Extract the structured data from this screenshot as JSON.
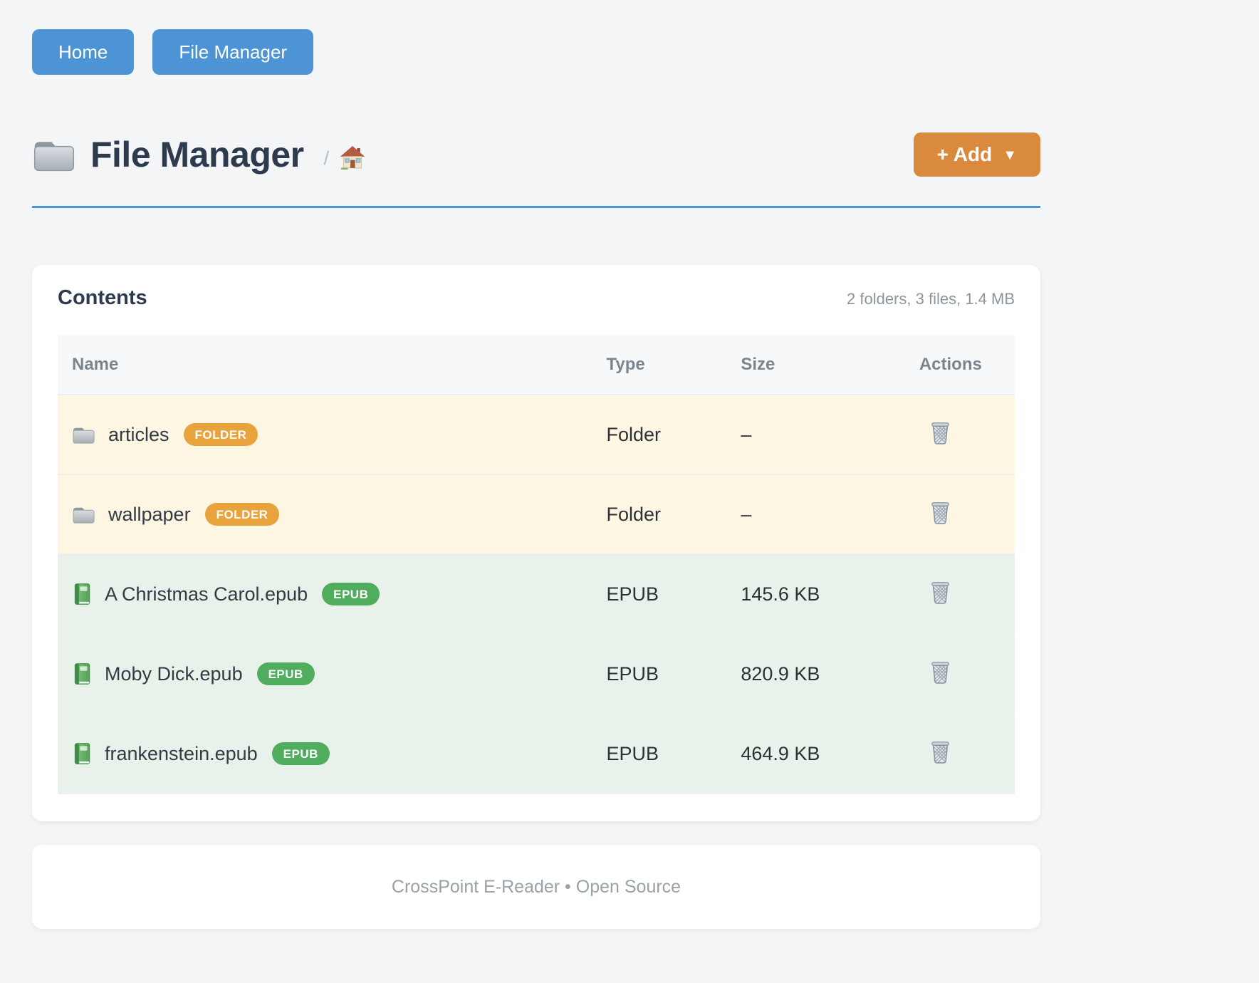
{
  "nav": {
    "buttons": [
      {
        "label": "Home"
      },
      {
        "label": "File Manager"
      }
    ]
  },
  "header": {
    "title": "File Manager",
    "breadcrumb_separator": "/",
    "add_button_label": "+ Add",
    "add_button_caret": "▼"
  },
  "contents_card": {
    "title": "Contents",
    "summary": "2 folders, 3 files, 1.4 MB",
    "table": {
      "columns": [
        "Name",
        "Type",
        "Size",
        "Actions"
      ],
      "rows": [
        {
          "name": "articles",
          "badge": "FOLDER",
          "kind": "folder",
          "type": "Folder",
          "size": "–"
        },
        {
          "name": "wallpaper",
          "badge": "FOLDER",
          "kind": "folder",
          "type": "Folder",
          "size": "–"
        },
        {
          "name": "A Christmas Carol.epub",
          "badge": "EPUB",
          "kind": "epub",
          "type": "EPUB",
          "size": "145.6 KB"
        },
        {
          "name": "Moby Dick.epub",
          "badge": "EPUB",
          "kind": "epub",
          "type": "EPUB",
          "size": "820.9 KB"
        },
        {
          "name": "frankenstein.epub",
          "badge": "EPUB",
          "kind": "epub",
          "type": "EPUB",
          "size": "464.9 KB"
        }
      ]
    }
  },
  "footer": {
    "text": "CrossPoint E-Reader • Open Source"
  },
  "colors": {
    "blue": "#4d94d6",
    "orange": "#d98a3c",
    "badge_folder": "#e9a33c",
    "badge_epub": "#50ad5e",
    "row_folder": "#fdf6e3",
    "row_epub": "#e9f2ea"
  }
}
